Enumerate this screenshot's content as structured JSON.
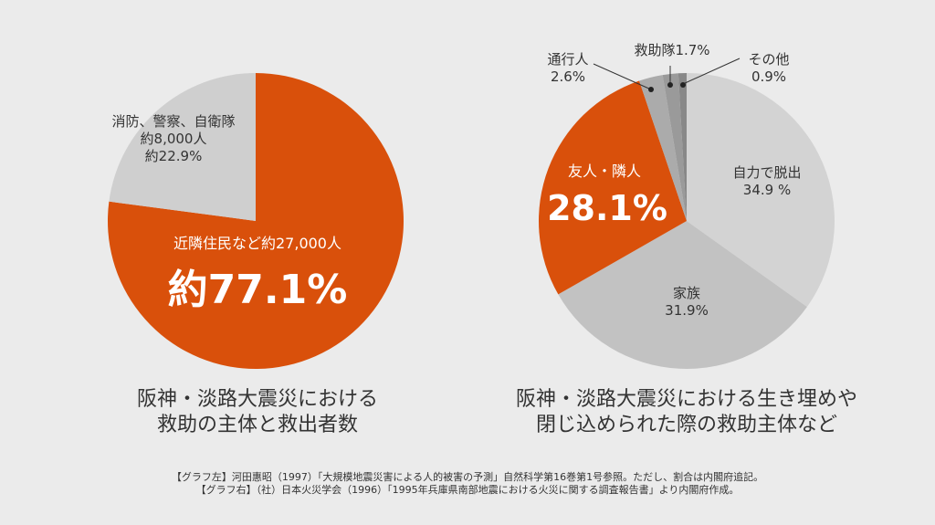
{
  "chart_data": [
    {
      "type": "pie",
      "title_lines": [
        "阪神・淡路大震災における",
        "救助の主体と救出者数"
      ],
      "slices": [
        {
          "label": "近隣住民など約27,000人",
          "value": 77.1,
          "value_label": "約77.1%",
          "color": "#d9500b"
        },
        {
          "label": "消防、警察、自衛隊",
          "sub": "約8,000人",
          "value": 22.9,
          "value_label": "約22.9%",
          "color": "#cfcfcf"
        }
      ]
    },
    {
      "type": "pie",
      "title_lines": [
        "阪神・淡路大震災における生き埋めや",
        "閉じ込められた際の救助主体など"
      ],
      "slices": [
        {
          "label": "自力で脱出",
          "value": 34.9,
          "value_label": "34.9 %",
          "color": "#d3d3d3"
        },
        {
          "label": "家族",
          "value": 31.9,
          "value_label": "31.9%",
          "color": "#c2c2c2"
        },
        {
          "label": "友人・隣人",
          "value": 28.1,
          "value_label": "28.1%",
          "color": "#d9500b"
        },
        {
          "label": "通行人",
          "value": 2.6,
          "value_label": "2.6%",
          "color": "#ababab"
        },
        {
          "label": "救助隊",
          "value": 1.7,
          "value_label": "1.7%",
          "color": "#9a9a9a"
        },
        {
          "label": "その他",
          "value": 0.9,
          "value_label": "0.9%",
          "color": "#888888"
        }
      ]
    }
  ],
  "notes": [
    "【グラフ左】河田惠昭（1997）「大規模地震災害による人的被害の予測」自然科学第16巻第1号参照。ただし、割合は内閣府追記。",
    "【グラフ右】（社）日本火災学会（1996）「1995年兵庫県南部地震における火災に関する調査報告書」より内閣府作成。"
  ]
}
